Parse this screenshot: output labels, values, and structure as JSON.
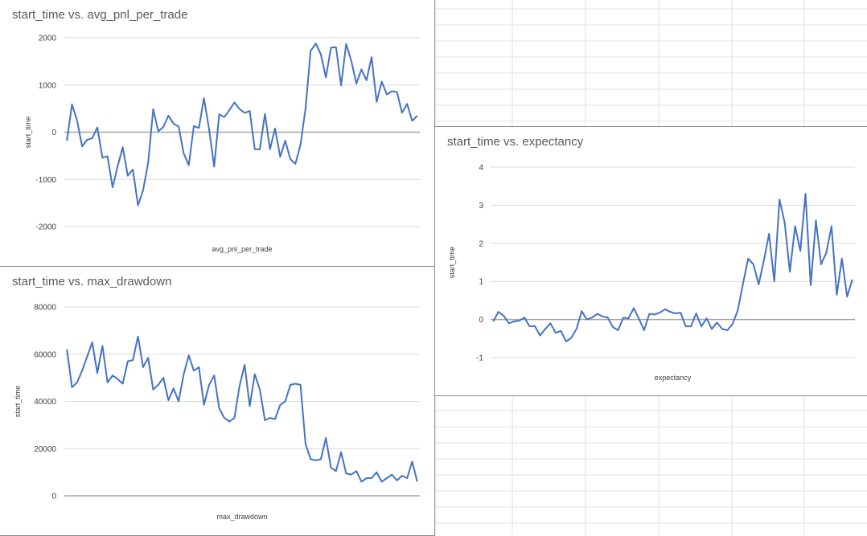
{
  "chart_data": [
    {
      "id": "avg_pnl",
      "type": "line",
      "title": "start_time vs. avg_pnl_per_trade",
      "xlabel": "avg_pnl_per_trade",
      "ylabel": "start_time",
      "ylim": [
        -2000,
        2000
      ],
      "yticks": [
        -2000,
        -1000,
        0,
        1000,
        2000
      ],
      "grid": true,
      "legend": "none",
      "color": "#4472c4",
      "series": [
        {
          "values": [
            -180,
            590,
            250,
            -300,
            -160,
            -130,
            100,
            -540,
            -510,
            -1170,
            -720,
            -320,
            -920,
            -790,
            -1550,
            -1230,
            -650,
            490,
            20,
            110,
            350,
            180,
            120,
            -450,
            -700,
            130,
            90,
            720,
            60,
            -730,
            380,
            320,
            470,
            630,
            490,
            410,
            450,
            -360,
            -360,
            390,
            -360,
            80,
            -520,
            -180,
            -570,
            -670,
            -270,
            500,
            1720,
            1880,
            1650,
            1160,
            1790,
            1800,
            990,
            1870,
            1510,
            1030,
            1330,
            1100,
            1590,
            640,
            1070,
            800,
            870,
            850,
            410,
            600,
            240,
            350
          ]
        }
      ]
    },
    {
      "id": "max_dd",
      "type": "line",
      "title": "start_time vs. max_drawdown",
      "xlabel": "max_drawdown",
      "ylabel": "start_time",
      "ylim": [
        0,
        80000
      ],
      "yticks": [
        0,
        20000,
        40000,
        60000,
        80000
      ],
      "grid": true,
      "legend": "none",
      "color": "#4472c4",
      "series": [
        {
          "values": [
            62000,
            46000,
            48000,
            53000,
            59000,
            65000,
            52000,
            63500,
            48000,
            51000,
            49500,
            47500,
            57000,
            57500,
            67500,
            54500,
            58500,
            45000,
            47000,
            50000,
            40500,
            45500,
            40000,
            51500,
            59500,
            53000,
            54500,
            38500,
            47000,
            51000,
            37000,
            33000,
            31500,
            33000,
            46500,
            55500,
            38000,
            51500,
            45000,
            32000,
            33000,
            32500,
            38500,
            40000,
            47000,
            47500,
            47000,
            22000,
            15500,
            15000,
            15500,
            24500,
            12000,
            10500,
            18500,
            9500,
            9000,
            10500,
            6000,
            7500,
            7500,
            10000,
            6000,
            7500,
            9000,
            6500,
            8500,
            7500,
            14500,
            6000
          ]
        }
      ]
    },
    {
      "id": "expectancy",
      "type": "line",
      "title": "start_time vs. expectancy",
      "xlabel": "expectancy",
      "ylabel": "start_time",
      "ylim": [
        -1,
        4
      ],
      "yticks": [
        -1,
        0,
        1,
        2,
        3,
        4
      ],
      "grid": true,
      "legend": "none",
      "color": "#4472c4",
      "series": [
        {
          "values": [
            -0.05,
            0.2,
            0.1,
            -0.1,
            -0.05,
            -0.03,
            0.05,
            -0.18,
            -0.17,
            -0.42,
            -0.25,
            -0.1,
            -0.35,
            -0.3,
            -0.58,
            -0.48,
            -0.25,
            0.22,
            0.0,
            0.05,
            0.15,
            0.08,
            0.05,
            -0.2,
            -0.28,
            0.05,
            0.03,
            0.3,
            0.02,
            -0.28,
            0.15,
            0.13,
            0.18,
            0.27,
            0.2,
            0.16,
            0.18,
            -0.18,
            -0.18,
            0.16,
            -0.18,
            0.03,
            -0.25,
            -0.08,
            -0.25,
            -0.28,
            -0.12,
            0.25,
            0.95,
            1.6,
            1.45,
            0.92,
            1.55,
            2.25,
            1.0,
            3.15,
            2.55,
            1.25,
            2.45,
            1.8,
            3.3,
            0.9,
            2.6,
            1.45,
            1.75,
            2.45,
            0.65,
            1.6,
            0.6,
            1.05
          ]
        }
      ]
    }
  ]
}
